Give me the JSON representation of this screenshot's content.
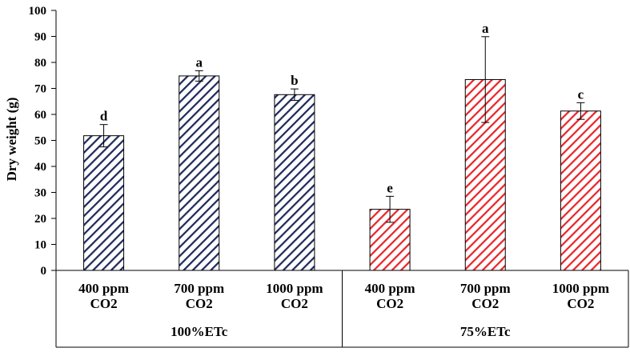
{
  "chart_data": {
    "type": "bar",
    "title": "",
    "ylabel": "Dry weight (g)",
    "xlabel": "",
    "ylim": [
      0,
      100
    ],
    "yticks": [
      0,
      10,
      20,
      30,
      40,
      50,
      60,
      70,
      80,
      90,
      100
    ],
    "grid": false,
    "categories": [
      {
        "line1": "400 ppm",
        "line2": "CO2"
      },
      {
        "line1": "700 ppm",
        "line2": "CO2"
      },
      {
        "line1": "1000 ppm",
        "line2": "CO2"
      },
      {
        "line1": "400 ppm",
        "line2": "CO2"
      },
      {
        "line1": "700 ppm",
        "line2": "CO2"
      },
      {
        "line1": "1000 ppm",
        "line2": "CO2"
      }
    ],
    "groups": [
      {
        "label": "100%ETc",
        "color": "#1f2a5c"
      },
      {
        "label": "75%ETc",
        "color": "#e8262a"
      }
    ],
    "bars": [
      {
        "group": 0,
        "value": 51.8,
        "err": 4.3,
        "letter": "d"
      },
      {
        "group": 0,
        "value": 74.8,
        "err": 2.0,
        "letter": "a"
      },
      {
        "group": 0,
        "value": 67.6,
        "err": 2.2,
        "letter": "b"
      },
      {
        "group": 1,
        "value": 23.5,
        "err": 5.0,
        "letter": "e"
      },
      {
        "group": 1,
        "value": 73.4,
        "err": 16.5,
        "letter": "a"
      },
      {
        "group": 1,
        "value": 61.3,
        "err": 3.2,
        "letter": "c"
      }
    ]
  }
}
